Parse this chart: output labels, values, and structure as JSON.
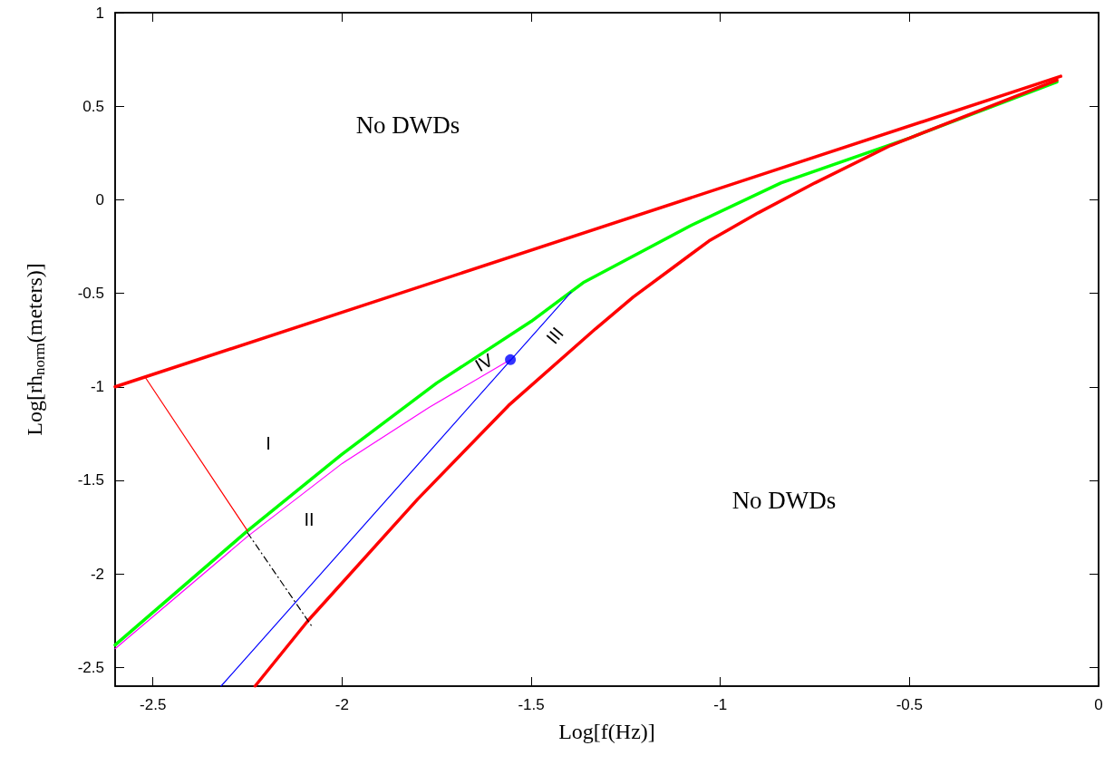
{
  "chart_data": {
    "type": "line",
    "xlabel": "Log[f(Hz)]",
    "ylabel": "Log[rh$_{norm}$(meters)]",
    "xlim": [
      -2.6,
      0
    ],
    "xticks": [
      -2.5,
      -2,
      -1.5,
      -1,
      -0.5,
      0
    ],
    "ylim": [
      -2.6,
      1
    ],
    "yticks": [
      -2.5,
      -2,
      -1.5,
      -1,
      -0.5,
      0,
      0.5,
      1
    ],
    "grid": false,
    "marker": "none",
    "series": [
      {
        "color": "#ff0000",
        "x": [
          -2.6,
          -0.1
        ],
        "values": [
          -1.0,
          0.66
        ]
      },
      {
        "color": "#00ff00",
        "x": [
          -2.6,
          -2.25,
          -2.0,
          -1.75,
          -1.5,
          -1.36,
          -1.08,
          -0.84,
          -0.5,
          -0.11
        ],
        "values": [
          -2.38,
          -1.77,
          -1.36,
          -0.98,
          -0.65,
          -0.44,
          -0.14,
          0.09,
          0.33,
          0.63
        ]
      },
      {
        "color": "#ff0000",
        "x": [
          -2.23,
          -2.09,
          -1.8,
          -1.56,
          -1.33,
          -1.23,
          -1.13,
          -1.03,
          -0.9,
          -0.75,
          -0.55,
          -0.11
        ],
        "values": [
          -2.6,
          -2.25,
          -1.6,
          -1.1,
          -0.69,
          -0.52,
          -0.37,
          -0.22,
          -0.07,
          0.09,
          0.29,
          0.64
        ]
      },
      {
        "color": "#ff00ff",
        "x": [
          -2.6,
          -2.25,
          -2.0,
          -1.77,
          -1.555
        ],
        "values": [
          -2.4,
          -1.8,
          -1.41,
          -1.11,
          -0.855
        ]
      },
      {
        "color": "#0000ff",
        "x": [
          -2.32,
          -1.395
        ],
        "values": [
          -2.6,
          -0.495
        ]
      },
      {
        "color": "#ff0000",
        "x": [
          -2.52,
          -2.25
        ],
        "values": [
          -0.95,
          -1.77
        ]
      },
      {
        "color": "#000000",
        "line_style": "dashed",
        "x": [
          -2.25,
          -2.08
        ],
        "values": [
          -1.78,
          -2.28
        ]
      },
      {
        "type": "scatter",
        "marker": "circle",
        "color": "#0000ff",
        "x": [
          -1.555
        ],
        "values": [
          -0.855
        ]
      }
    ],
    "annotations": [
      "No DWDs",
      "No DWDs",
      "I",
      "II",
      "III",
      "IV"
    ]
  }
}
